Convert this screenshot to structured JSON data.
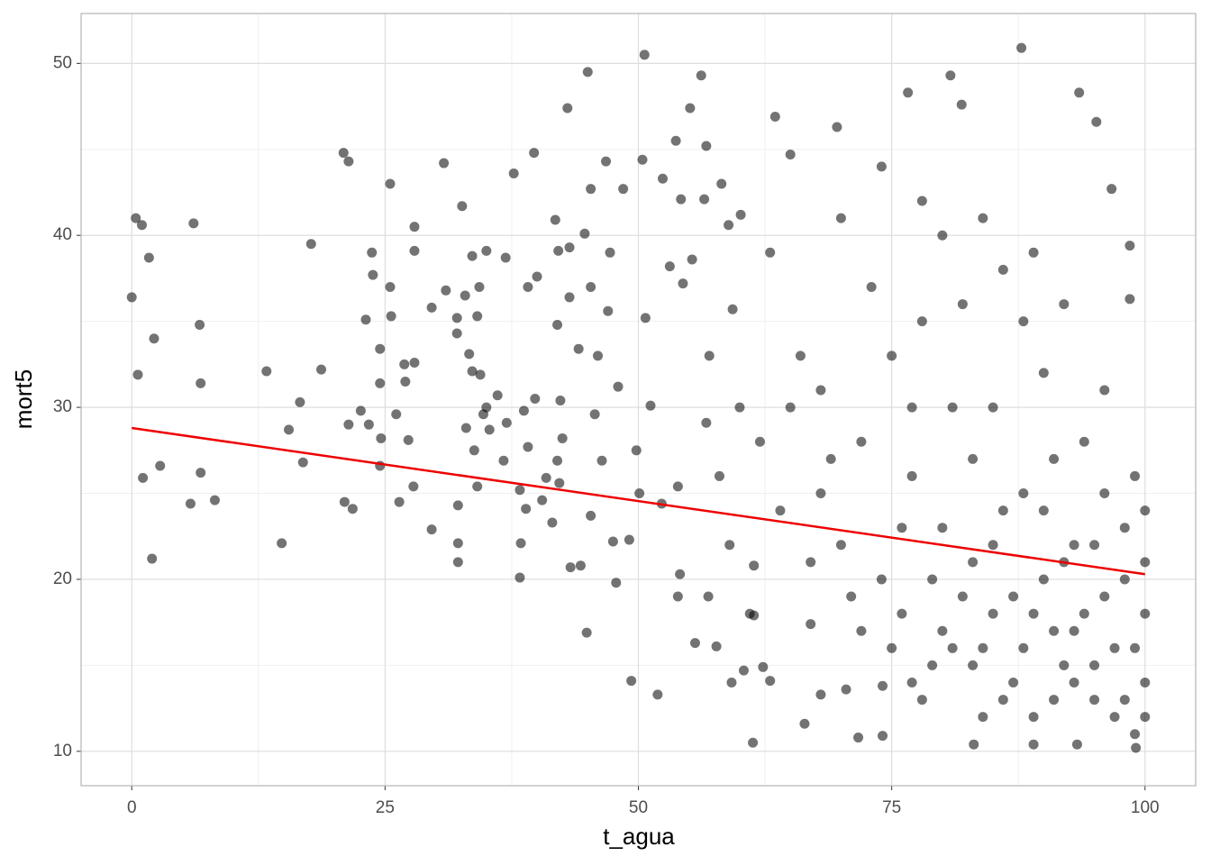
{
  "chart_data": {
    "type": "scatter",
    "x_label": "t_agua",
    "y_label": "mort5",
    "xlim": [
      -5,
      105
    ],
    "ylim": [
      8.0,
      52.9
    ],
    "xticks": [
      0,
      25,
      50,
      75,
      100
    ],
    "yticks": [
      10,
      20,
      30,
      40,
      50
    ],
    "x_minor_gridlines": [
      12.5,
      37.5,
      62.5,
      87.5
    ],
    "y_minor_gridlines": [
      15,
      25,
      35,
      45
    ],
    "grid": true,
    "point_color": "#000000",
    "point_opacity": 0.55,
    "x": [
      0,
      0.4,
      1,
      0.6,
      1.7,
      2.2,
      1.1,
      2,
      2.8,
      6.1,
      6.7,
      6.8,
      6.8,
      5.8,
      8.2,
      13.3,
      14.8,
      15.5,
      16.6,
      16.9,
      17.7,
      18.7,
      20.9,
      21.4,
      21.4,
      21,
      21.8,
      22.6,
      23.1,
      23.4,
      23.7,
      23.8,
      24.5,
      24.5,
      24.6,
      24.5,
      25.5,
      25.5,
      25.6,
      26.1,
      26.4,
      26.9,
      27,
      27.3,
      27.9,
      27.9,
      27.9,
      27.8,
      29.6,
      29.6,
      30.8,
      31,
      32.1,
      32.1,
      32.2,
      32.2,
      32.2,
      32.6,
      32.9,
      33,
      33.3,
      33.6,
      33.6,
      33.8,
      34.1,
      34.1,
      34.3,
      34.4,
      35,
      34.7,
      35,
      35.3,
      36.1,
      36.7,
      36.9,
      37.7,
      37,
      38.3,
      38.3,
      38.4,
      38.7,
      38.9,
      39.1,
      39.1,
      39.7,
      40,
      39.8,
      40.5,
      40.9,
      41.5,
      41.8,
      42,
      42,
      42.1,
      42.5,
      42.2,
      42.3,
      43,
      43.2,
      43.2,
      43.3,
      44.3,
      44.1,
      44.7,
      44.9,
      45,
      45.3,
      45.3,
      45.3,
      46,
      45.7,
      46.4,
      46.8,
      47.2,
      47,
      47.5,
      48,
      47.8,
      48.5,
      49.1,
      49.3,
      49.8,
      50.4,
      50.6,
      50.7,
      50.1,
      51.2,
      51.9,
      52.4,
      52.3,
      53.1,
      53.7,
      53.9,
      54.1,
      53.9,
      54.2,
      54.4,
      55.1,
      55.3,
      55.6,
      56.2,
      56.5,
      56.7,
      56.7,
      56.9,
      57.7,
      58.2,
      58.9,
      59.3,
      59.2,
      60.1,
      60.4,
      61.3,
      61.4,
      61.4,
      62.3,
      63,
      63.5,
      65,
      66.4,
      67,
      68,
      69.6,
      70.5,
      71.7,
      74.1,
      74.1,
      76.6,
      80.8,
      81.9,
      87.8,
      93.5,
      95.2,
      96.7,
      98.5,
      98.5,
      83.1,
      89,
      93.3,
      99.1,
      65,
      68,
      70,
      72,
      74,
      75,
      76,
      77,
      78,
      79,
      80,
      81,
      82,
      83,
      84,
      85,
      86,
      87,
      88,
      89,
      90,
      91,
      92,
      93,
      94,
      95,
      96,
      97,
      98,
      99,
      100,
      100,
      100,
      99,
      98,
      97,
      96,
      95,
      94,
      93,
      92,
      91,
      90,
      89,
      88,
      87,
      86,
      85,
      84,
      83,
      82,
      81,
      80,
      79,
      78,
      77,
      76,
      75,
      73,
      71,
      69,
      67,
      66,
      64,
      62,
      61,
      63,
      70,
      74,
      78,
      84,
      89,
      92,
      96,
      99,
      100,
      100,
      98,
      95,
      93,
      91,
      90,
      88,
      86,
      85,
      83,
      80,
      77,
      72,
      68,
      58,
      60,
      57,
      59
    ],
    "y": [
      36.4,
      41,
      40.6,
      31.9,
      38.7,
      34,
      25.9,
      21.2,
      26.6,
      40.7,
      34.8,
      31.4,
      26.2,
      24.4,
      24.6,
      32.1,
      22.1,
      28.7,
      30.3,
      26.8,
      39.5,
      32.2,
      44.8,
      44.3,
      29,
      24.5,
      24.1,
      29.8,
      35.1,
      29,
      39,
      37.7,
      33.4,
      31.4,
      28.2,
      26.6,
      43,
      37,
      35.3,
      29.6,
      24.5,
      32.5,
      31.5,
      28.1,
      32.6,
      40.5,
      39.1,
      25.4,
      22.9,
      35.8,
      44.2,
      36.8,
      35.2,
      34.3,
      22.1,
      21,
      24.3,
      41.7,
      36.5,
      28.8,
      33.1,
      38.8,
      32.1,
      27.5,
      25.4,
      35.3,
      37,
      31.9,
      39.1,
      29.6,
      30,
      28.7,
      30.7,
      26.9,
      38.7,
      43.6,
      29.1,
      20.1,
      25.2,
      22.1,
      29.8,
      24.1,
      37,
      27.7,
      44.8,
      37.6,
      30.5,
      24.6,
      25.9,
      23.3,
      40.9,
      34.8,
      26.9,
      39.1,
      28.2,
      25.6,
      30.4,
      47.4,
      36.4,
      39.3,
      20.7,
      20.8,
      33.4,
      40.1,
      16.9,
      49.5,
      42.7,
      37,
      23.7,
      33,
      29.6,
      26.9,
      44.3,
      39,
      35.6,
      22.2,
      31.2,
      19.8,
      42.7,
      22.3,
      14.1,
      27.5,
      44.4,
      50.5,
      35.2,
      25,
      30.1,
      13.3,
      43.3,
      24.4,
      38.2,
      45.5,
      25.4,
      20.3,
      19,
      42.1,
      37.2,
      47.4,
      38.6,
      16.3,
      49.3,
      42.1,
      45.2,
      29.1,
      19,
      16.1,
      43,
      40.6,
      35.7,
      14,
      41.2,
      14.7,
      10.5,
      20.8,
      17.9,
      14.9,
      14.1,
      46.9,
      44.7,
      11.6,
      17.4,
      13.3,
      46.3,
      13.6,
      10.8,
      10.9,
      13.8,
      48.3,
      49.3,
      47.6,
      50.9,
      48.3,
      46.6,
      42.7,
      39.4,
      36.3,
      10.4,
      10.4,
      10.4,
      10.2,
      30,
      25,
      22,
      28,
      20,
      33,
      18,
      26,
      35,
      15,
      23,
      30,
      19,
      27,
      16,
      22,
      38,
      14,
      25,
      18,
      32,
      13,
      21,
      17,
      28,
      15,
      19,
      12,
      23,
      16,
      14,
      18,
      21,
      11,
      20,
      16,
      25,
      13,
      18,
      22,
      15,
      27,
      20,
      12,
      35,
      19,
      24,
      30,
      12,
      21,
      36,
      16,
      40,
      20,
      13,
      30,
      23,
      16,
      37,
      19,
      27,
      21,
      33,
      24,
      28,
      18,
      39,
      41,
      44,
      42,
      41,
      39,
      36,
      31,
      26,
      24,
      12,
      13,
      22,
      14,
      17,
      24,
      16,
      13,
      18,
      15,
      17,
      14,
      17,
      31,
      26,
      30,
      33,
      22
    ],
    "trend_line": {
      "x": [
        0,
        100
      ],
      "y": [
        28.8,
        20.3
      ],
      "color": "#ee0000"
    }
  }
}
